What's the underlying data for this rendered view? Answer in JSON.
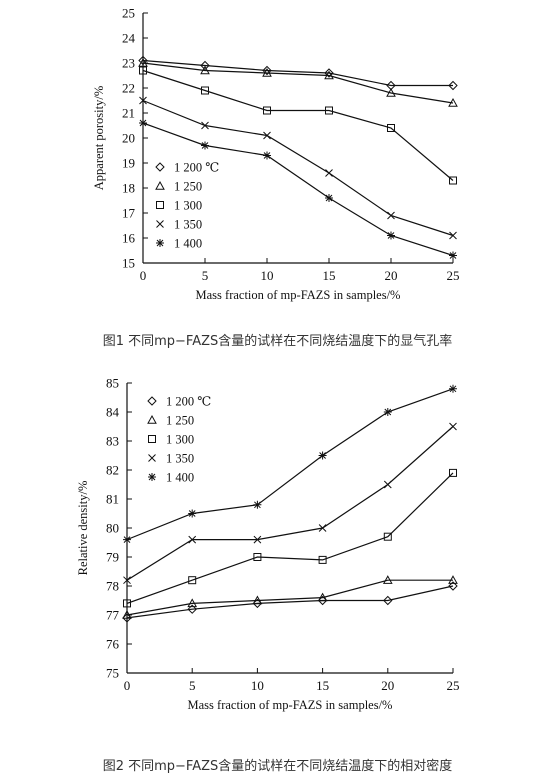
{
  "chart_data": [
    {
      "type": "line",
      "xlabel": "Mass fraction of mp-FAZS in samples/%",
      "ylabel": "Apparent porosity/%",
      "x": [
        0,
        5,
        10,
        15,
        20,
        25
      ],
      "xticks": [
        "0",
        "5",
        "10",
        "15",
        "20",
        "25"
      ],
      "xlim": [
        0,
        25
      ],
      "ylim": [
        15,
        25
      ],
      "yticks": [
        15,
        16,
        17,
        18,
        19,
        20,
        21,
        22,
        23,
        24,
        25
      ],
      "grid": false,
      "legend_position": "bottom-left",
      "series": [
        {
          "name": "1 200 ℃",
          "marker": "diamond",
          "values": [
            23.1,
            22.9,
            22.7,
            22.6,
            22.1,
            22.1
          ]
        },
        {
          "name": "1 250",
          "marker": "triangle",
          "values": [
            23.0,
            22.7,
            22.6,
            22.5,
            21.8,
            21.4
          ]
        },
        {
          "name": "1 300",
          "marker": "square",
          "values": [
            22.7,
            21.9,
            21.1,
            21.1,
            20.4,
            18.3
          ]
        },
        {
          "name": "1 350",
          "marker": "x",
          "values": [
            21.5,
            20.5,
            20.1,
            18.6,
            16.9,
            16.1
          ]
        },
        {
          "name": "1 400",
          "marker": "star",
          "values": [
            20.6,
            19.7,
            19.3,
            17.6,
            16.1,
            15.3
          ]
        }
      ],
      "caption": "图1 不同mp−FAZS含量的试样在不同烧结温度下的显气孔率"
    },
    {
      "type": "line",
      "xlabel": "Mass fraction of mp-FAZS in samples/%",
      "ylabel": "Relative density/%",
      "x": [
        0,
        5,
        10,
        15,
        20,
        25
      ],
      "xticks": [
        "0",
        "5",
        "10",
        "15",
        "20",
        "25"
      ],
      "xlim": [
        0,
        25
      ],
      "ylim": [
        75,
        85
      ],
      "yticks": [
        75,
        76,
        77,
        78,
        79,
        80,
        81,
        82,
        83,
        84,
        85
      ],
      "grid": false,
      "legend_position": "top-left",
      "series": [
        {
          "name": "1 200 ℃",
          "marker": "diamond",
          "values": [
            76.9,
            77.2,
            77.4,
            77.5,
            77.5,
            78.0
          ]
        },
        {
          "name": "1 250",
          "marker": "triangle",
          "values": [
            77.0,
            77.4,
            77.5,
            77.6,
            78.2,
            78.2
          ]
        },
        {
          "name": "1 300",
          "marker": "square",
          "values": [
            77.4,
            78.2,
            79.0,
            78.9,
            79.7,
            81.9
          ]
        },
        {
          "name": "1 350",
          "marker": "x",
          "values": [
            78.2,
            79.6,
            79.6,
            80.0,
            81.5,
            83.5
          ]
        },
        {
          "name": "1 400",
          "marker": "star",
          "values": [
            79.6,
            80.5,
            80.8,
            82.5,
            84.0,
            84.8
          ]
        }
      ],
      "caption": "图2 不同mp−FAZS含量的试样在不同烧结温度下的相对密度"
    }
  ]
}
